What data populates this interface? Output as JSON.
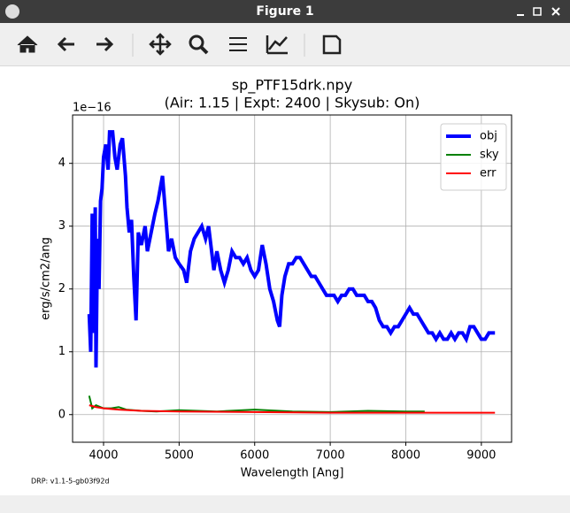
{
  "window": {
    "title": "Figure 1"
  },
  "chart_data": {
    "type": "line",
    "title": "sp_PTF15drk.npy",
    "subtitle": "(Air: 1.15 | Expt: 2400 | Skysub: On)",
    "x_label": "Wavelength [Ang]",
    "y_label": "erg/s/cm2/ang",
    "y_offset_label": "1e−16",
    "footnote": "DRP: v1.1-5-gb03f92d",
    "xlim": [
      3590,
      9400
    ],
    "xticks": [
      4000,
      5000,
      6000,
      7000,
      8000,
      9000
    ],
    "ylim": [
      -0.44,
      4.77
    ],
    "yticks": [
      0,
      1,
      2,
      3,
      4
    ],
    "grid": true,
    "legend": "upper right",
    "series": [
      {
        "name": "obj",
        "color": "#0000ff",
        "width": 4,
        "x": [
          3810,
          3830,
          3850,
          3870,
          3890,
          3900,
          3920,
          3940,
          3960,
          3980,
          4000,
          4030,
          4060,
          4080,
          4120,
          4150,
          4180,
          4220,
          4250,
          4290,
          4310,
          4340,
          4370,
          4400,
          4430,
          4460,
          4500,
          4550,
          4580,
          4630,
          4680,
          4720,
          4780,
          4820,
          4860,
          4900,
          4950,
          5000,
          5060,
          5100,
          5150,
          5200,
          5250,
          5300,
          5350,
          5390,
          5430,
          5460,
          5500,
          5550,
          5600,
          5650,
          5700,
          5750,
          5800,
          5850,
          5900,
          5950,
          6000,
          6050,
          6100,
          6150,
          6200,
          6250,
          6300,
          6330,
          6360,
          6400,
          6450,
          6500,
          6550,
          6600,
          6650,
          6700,
          6750,
          6800,
          6850,
          6900,
          6950,
          7000,
          7050,
          7100,
          7150,
          7200,
          7250,
          7300,
          7350,
          7400,
          7450,
          7500,
          7550,
          7600,
          7650,
          7700,
          7750,
          7800,
          7850,
          7900,
          7950,
          8000,
          8050,
          8100,
          8150,
          8200,
          8250,
          8300,
          8350,
          8400,
          8450,
          8500,
          8550,
          8600,
          8650,
          8700,
          8750,
          8800,
          8850,
          8900,
          8950,
          9000,
          9050,
          9100,
          9150,
          9180
        ],
        "values": [
          1.6,
          1.0,
          3.2,
          1.3,
          3.3,
          0.75,
          2.8,
          2.0,
          3.4,
          3.6,
          4.1,
          4.3,
          3.9,
          4.5,
          4.5,
          4.1,
          3.9,
          4.3,
          4.4,
          3.8,
          3.3,
          2.9,
          3.1,
          2.2,
          1.5,
          2.9,
          2.7,
          3.0,
          2.6,
          2.9,
          3.2,
          3.4,
          3.8,
          3.2,
          2.6,
          2.8,
          2.5,
          2.4,
          2.3,
          2.1,
          2.6,
          2.8,
          2.9,
          3.0,
          2.8,
          3.0,
          2.6,
          2.3,
          2.6,
          2.3,
          2.1,
          2.3,
          2.6,
          2.5,
          2.5,
          2.4,
          2.5,
          2.3,
          2.2,
          2.3,
          2.7,
          2.4,
          2.0,
          1.8,
          1.5,
          1.4,
          1.9,
          2.2,
          2.4,
          2.4,
          2.5,
          2.5,
          2.4,
          2.3,
          2.2,
          2.2,
          2.1,
          2.0,
          1.9,
          1.9,
          1.9,
          1.8,
          1.9,
          1.9,
          2.0,
          2.0,
          1.9,
          1.9,
          1.9,
          1.8,
          1.8,
          1.7,
          1.5,
          1.4,
          1.4,
          1.3,
          1.4,
          1.4,
          1.5,
          1.6,
          1.7,
          1.6,
          1.6,
          1.5,
          1.4,
          1.3,
          1.3,
          1.2,
          1.3,
          1.2,
          1.2,
          1.3,
          1.2,
          1.3,
          1.3,
          1.2,
          1.4,
          1.4,
          1.3,
          1.2,
          1.2,
          1.3,
          1.3,
          1.3
        ]
      },
      {
        "name": "sky",
        "color": "#008000",
        "width": 2,
        "x": [
          3810,
          3850,
          3900,
          4000,
          4100,
          4200,
          4300,
          4500,
          4700,
          5000,
          5500,
          6000,
          6500,
          7000,
          7500,
          8000,
          8250
        ],
        "values": [
          0.3,
          0.1,
          0.15,
          0.1,
          0.1,
          0.12,
          0.08,
          0.06,
          0.05,
          0.07,
          0.05,
          0.08,
          0.05,
          0.04,
          0.06,
          0.05,
          0.05
        ]
      },
      {
        "name": "err",
        "color": "#ff0000",
        "width": 2,
        "x": [
          3810,
          3900,
          4000,
          4200,
          4500,
          5000,
          6000,
          7000,
          8000,
          9180
        ],
        "values": [
          0.15,
          0.12,
          0.1,
          0.08,
          0.06,
          0.05,
          0.04,
          0.03,
          0.03,
          0.03
        ]
      }
    ]
  }
}
